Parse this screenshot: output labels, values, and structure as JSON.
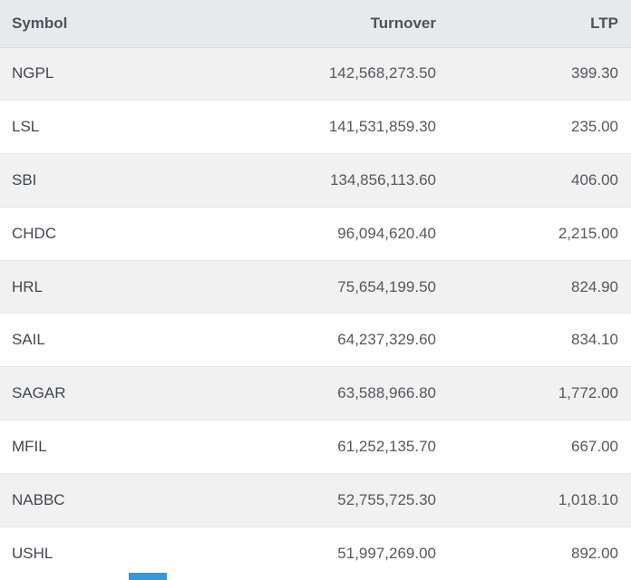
{
  "colors": {
    "accent_blue": "#3498db",
    "header_bg": "#e6eaed",
    "stripe_bg": "#f1f1f2"
  },
  "table": {
    "columns": [
      {
        "id": "symbol",
        "label": "Symbol",
        "align": "left"
      },
      {
        "id": "turnover",
        "label": "Turnover",
        "align": "right"
      },
      {
        "id": "ltp",
        "label": "LTP",
        "align": "right"
      }
    ],
    "rows": [
      {
        "symbol": "NGPL",
        "turnover": "142,568,273.50",
        "ltp": "399.30"
      },
      {
        "symbol": "LSL",
        "turnover": "141,531,859.30",
        "ltp": "235.00"
      },
      {
        "symbol": "SBI",
        "turnover": "134,856,113.60",
        "ltp": "406.00"
      },
      {
        "symbol": "CHDC",
        "turnover": "96,094,620.40",
        "ltp": "2,215.00"
      },
      {
        "symbol": "HRL",
        "turnover": "75,654,199.50",
        "ltp": "824.90"
      },
      {
        "symbol": "SAIL",
        "turnover": "64,237,329.60",
        "ltp": "834.10"
      },
      {
        "symbol": "SAGAR",
        "turnover": "63,588,966.80",
        "ltp": "1,772.00"
      },
      {
        "symbol": "MFIL",
        "turnover": "61,252,135.70",
        "ltp": "667.00"
      },
      {
        "symbol": "NABBC",
        "turnover": "52,755,725.30",
        "ltp": "1,018.10"
      },
      {
        "symbol": "USHL",
        "turnover": "51,997,269.00",
        "ltp": "892.00"
      }
    ]
  }
}
